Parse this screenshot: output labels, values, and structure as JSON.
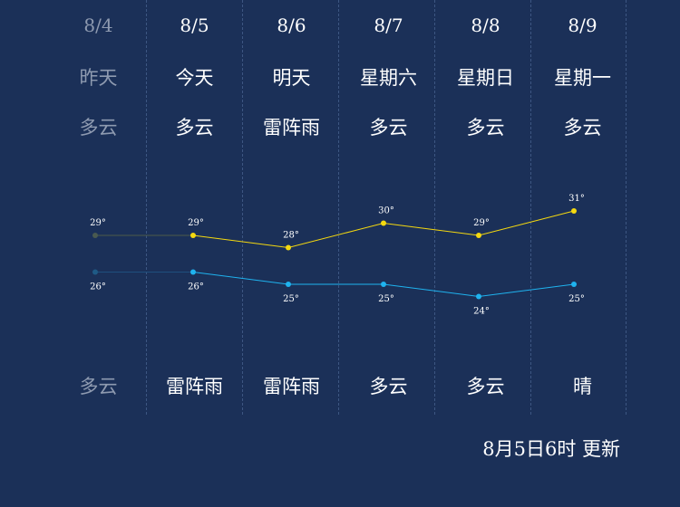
{
  "days": [
    {
      "date": "8/4",
      "label": "昨天",
      "cond_day": "多云",
      "cond_night": "多云",
      "high": 29,
      "low": 26,
      "past": true
    },
    {
      "date": "8/5",
      "label": "今天",
      "cond_day": "多云",
      "cond_night": "雷阵雨",
      "high": 29,
      "low": 26,
      "past": false
    },
    {
      "date": "8/6",
      "label": "明天",
      "cond_day": "雷阵雨",
      "cond_night": "雷阵雨",
      "high": 28,
      "low": 25,
      "past": false
    },
    {
      "date": "8/7",
      "label": "星期六",
      "cond_day": "多云",
      "cond_night": "多云",
      "high": 30,
      "low": 25,
      "past": false
    },
    {
      "date": "8/8",
      "label": "星期日",
      "cond_day": "多云",
      "cond_night": "多云",
      "high": 29,
      "low": 24,
      "past": false
    },
    {
      "date": "8/9",
      "label": "星期一",
      "cond_day": "多云",
      "cond_night": "晴",
      "high": 31,
      "low": 25,
      "past": false
    }
  ],
  "chart_data": {
    "type": "line",
    "categories": [
      "8/4",
      "8/5",
      "8/6",
      "8/7",
      "8/8",
      "8/9"
    ],
    "series": [
      {
        "values": [
          29,
          29,
          28,
          30,
          29,
          31
        ],
        "color": "#f5d90f"
      },
      {
        "values": [
          26,
          26,
          25,
          25,
          24,
          25
        ],
        "color": "#1fb3ef"
      }
    ],
    "unit_suffix": "°",
    "past_color": "#4e5a48"
  },
  "update_text": "8月5日6时 更新",
  "colors": {
    "background": "#1b3058",
    "past_text": "#8e9ab0",
    "divider": "#3d5682"
  }
}
